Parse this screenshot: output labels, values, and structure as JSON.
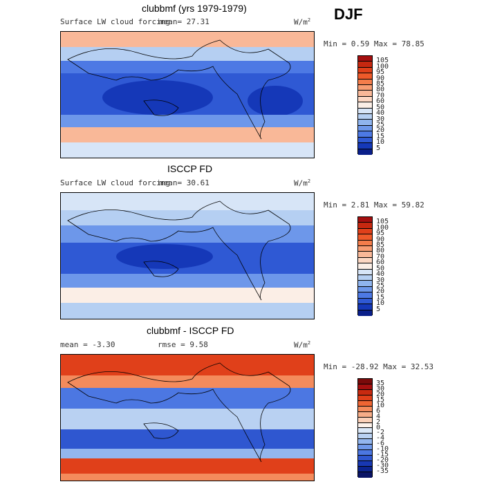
{
  "season": "DJF",
  "panels": [
    {
      "title": "clubbmf (yrs 1979-1979)",
      "left": "Surface LW cloud forcing",
      "mean": "mean=  27.31",
      "units": "W/m",
      "units_sup": "2",
      "minmax": "Min =   0.59 Max =  78.85",
      "levels": [
        "105",
        "100",
        "95",
        "90",
        "85",
        "80",
        "70",
        "60",
        "50",
        "40",
        "30",
        "25",
        "20",
        "15",
        "10",
        "5"
      ],
      "colors": [
        "#a50f0f",
        "#c62810",
        "#e0401a",
        "#ee5a2a",
        "#f47d4b",
        "#f79d73",
        "#f9b898",
        "#fcd7c3",
        "#fbeee6",
        "#d7e5f7",
        "#b5cff2",
        "#8fb4ee",
        "#6d97ea",
        "#4d79e4",
        "#2f59d4",
        "#1538b8",
        "#0a1f8a"
      ]
    },
    {
      "title": "ISCCP FD",
      "left": "Surface LW cloud forcing",
      "mean": "mean=  30.61",
      "units": "W/m",
      "units_sup": "2",
      "minmax": "Min =   2.81 Max =  59.82",
      "levels": [
        "105",
        "100",
        "95",
        "90",
        "85",
        "80",
        "70",
        "60",
        "50",
        "40",
        "30",
        "25",
        "20",
        "15",
        "10",
        "5"
      ],
      "colors": [
        "#a50f0f",
        "#c62810",
        "#e0401a",
        "#ee5a2a",
        "#f47d4b",
        "#f79d73",
        "#f9b898",
        "#fcd7c3",
        "#fbeee6",
        "#d7e5f7",
        "#b5cff2",
        "#8fb4ee",
        "#6d97ea",
        "#4d79e4",
        "#2f59d4",
        "#1538b8",
        "#0a1f8a"
      ]
    },
    {
      "title": "clubbmf - ISCCP FD",
      "left": "mean =  -3.30",
      "mean": "rmse =   9.58",
      "units": "W/m",
      "units_sup": "2",
      "minmax": "Min = -28.92 Max =  32.53",
      "levels": [
        "35",
        "30",
        "20",
        "15",
        "10",
        "6",
        "4",
        "2",
        "0",
        "-2",
        "-4",
        "-6",
        "-10",
        "-15",
        "-20",
        "-30",
        "-35"
      ],
      "colors": [
        "#7a0a0a",
        "#a50f0f",
        "#c82a10",
        "#e0401a",
        "#ef6533",
        "#f48b5c",
        "#f7ad88",
        "#fbd0b8",
        "#fdf1ea",
        "#dbe8f8",
        "#b9d1f2",
        "#93b6ee",
        "#6f98e9",
        "#4c77e2",
        "#2f57d0",
        "#1838b3",
        "#0c2490",
        "#0a1466"
      ]
    }
  ],
  "chart_data": [
    {
      "type": "heatmap",
      "title": "clubbmf (yrs 1979-1979)",
      "subtitle": "Surface LW cloud forcing",
      "units": "W/m2",
      "mean": 27.31,
      "min": 0.59,
      "max": 78.85,
      "colorbar_levels": [
        5,
        10,
        15,
        20,
        25,
        30,
        40,
        50,
        60,
        70,
        80,
        85,
        90,
        95,
        100,
        105
      ],
      "grid": false
    },
    {
      "type": "heatmap",
      "title": "ISCCP FD",
      "subtitle": "Surface LW cloud forcing",
      "units": "W/m2",
      "mean": 30.61,
      "min": 2.81,
      "max": 59.82,
      "colorbar_levels": [
        5,
        10,
        15,
        20,
        25,
        30,
        40,
        50,
        60,
        70,
        80,
        85,
        90,
        95,
        100,
        105
      ],
      "grid": false
    },
    {
      "type": "heatmap",
      "title": "clubbmf - ISCCP FD",
      "units": "W/m2",
      "mean": -3.3,
      "rmse": 9.58,
      "min": -28.92,
      "max": 32.53,
      "colorbar_levels": [
        -35,
        -30,
        -20,
        -15,
        -10,
        -6,
        -4,
        -2,
        0,
        2,
        4,
        6,
        10,
        15,
        20,
        30,
        35
      ],
      "grid": false
    }
  ]
}
